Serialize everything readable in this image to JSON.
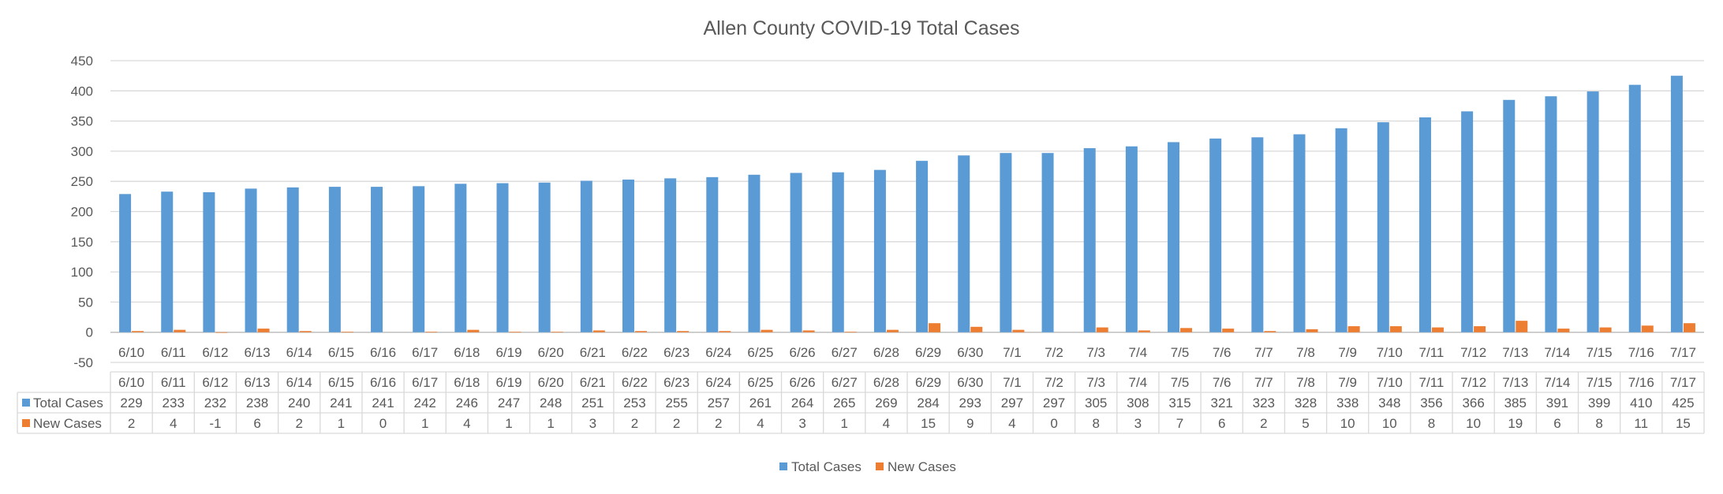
{
  "chart_data": {
    "type": "bar",
    "title": "Allen County COVID-19 Total Cases",
    "categories": [
      "6/10",
      "6/11",
      "6/12",
      "6/13",
      "6/14",
      "6/15",
      "6/16",
      "6/17",
      "6/18",
      "6/19",
      "6/20",
      "6/21",
      "6/22",
      "6/23",
      "6/24",
      "6/25",
      "6/26",
      "6/27",
      "6/28",
      "6/29",
      "6/30",
      "7/1",
      "7/2",
      "7/3",
      "7/4",
      "7/5",
      "7/6",
      "7/7",
      "7/8",
      "7/9",
      "7/10",
      "7/11",
      "7/12",
      "7/13",
      "7/14",
      "7/15",
      "7/16",
      "7/17"
    ],
    "series": [
      {
        "name": "Total Cases",
        "color": "#5B9BD5",
        "values": [
          229,
          233,
          232,
          238,
          240,
          241,
          241,
          242,
          246,
          247,
          248,
          251,
          253,
          255,
          257,
          261,
          264,
          265,
          269,
          284,
          293,
          297,
          297,
          305,
          308,
          315,
          321,
          323,
          328,
          338,
          348,
          356,
          366,
          385,
          391,
          399,
          410,
          425
        ]
      },
      {
        "name": "New Cases",
        "color": "#ED7D31",
        "values": [
          2,
          4,
          -1,
          6,
          2,
          1,
          0,
          1,
          4,
          1,
          1,
          3,
          2,
          2,
          2,
          4,
          3,
          1,
          4,
          15,
          9,
          4,
          0,
          8,
          3,
          7,
          6,
          2,
          5,
          10,
          10,
          8,
          10,
          19,
          6,
          8,
          11,
          15
        ]
      }
    ],
    "y_ticks": [
      -50,
      0,
      50,
      100,
      150,
      200,
      250,
      300,
      350,
      400,
      450
    ],
    "ylim": [
      -50,
      450
    ],
    "xlabel": "",
    "ylabel": "",
    "grid": true,
    "legend_position": "bottom",
    "data_table": true
  }
}
